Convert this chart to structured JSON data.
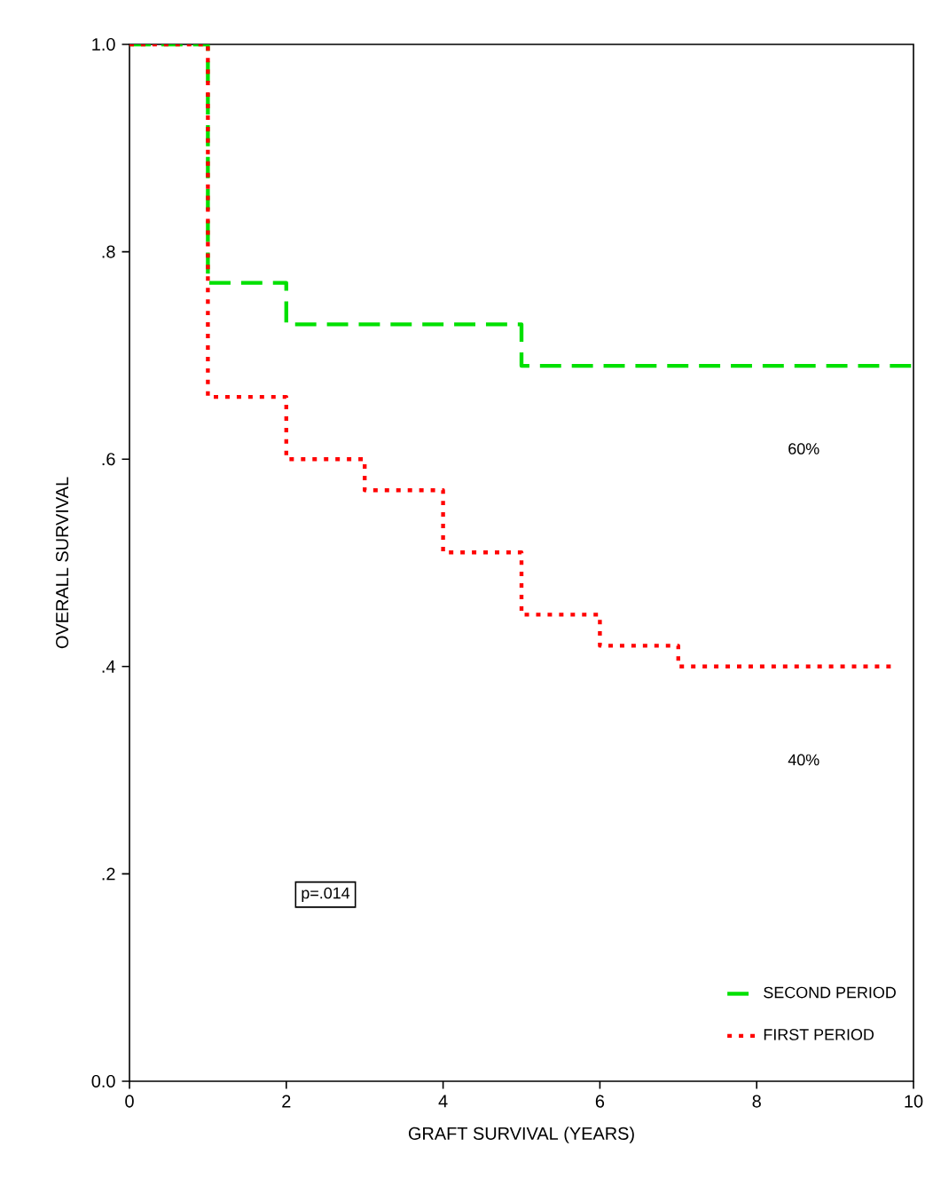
{
  "chart_data": {
    "type": "step",
    "xlabel": "GRAFT SURVIVAL (YEARS)",
    "ylabel": "OVERALL SURVIVAL",
    "xlim": [
      0,
      10
    ],
    "ylim": [
      0,
      1
    ],
    "xticks": [
      0,
      2,
      4,
      6,
      8,
      10
    ],
    "yticks": [
      {
        "value": 0,
        "label": "0.0"
      },
      {
        "value": 0.2,
        "label": ".2"
      },
      {
        "value": 0.4,
        "label": ".4"
      },
      {
        "value": 0.6,
        "label": ".6"
      },
      {
        "value": 0.8,
        "label": ".8"
      },
      {
        "value": 1,
        "label": "1.0"
      }
    ],
    "series": [
      {
        "name": "SECOND  PERIOD",
        "color": "#00e000",
        "line_style": "dashed",
        "x": [
          0,
          1,
          2,
          5,
          10
        ],
        "values": [
          1,
          0.77,
          0.73,
          0.69,
          0.69
        ]
      },
      {
        "name": "FIRST PERIOD",
        "color": "#ff0000",
        "line_style": "dotted",
        "x": [
          0,
          1,
          2,
          3,
          4,
          5,
          6,
          7,
          9.75
        ],
        "values": [
          1,
          0.66,
          0.6,
          0.57,
          0.51,
          0.45,
          0.42,
          0.4,
          0.4
        ]
      }
    ],
    "annotations": [
      "60%",
      "40%",
      "p=.014"
    ],
    "legend": "bottom right",
    "grid": false
  }
}
